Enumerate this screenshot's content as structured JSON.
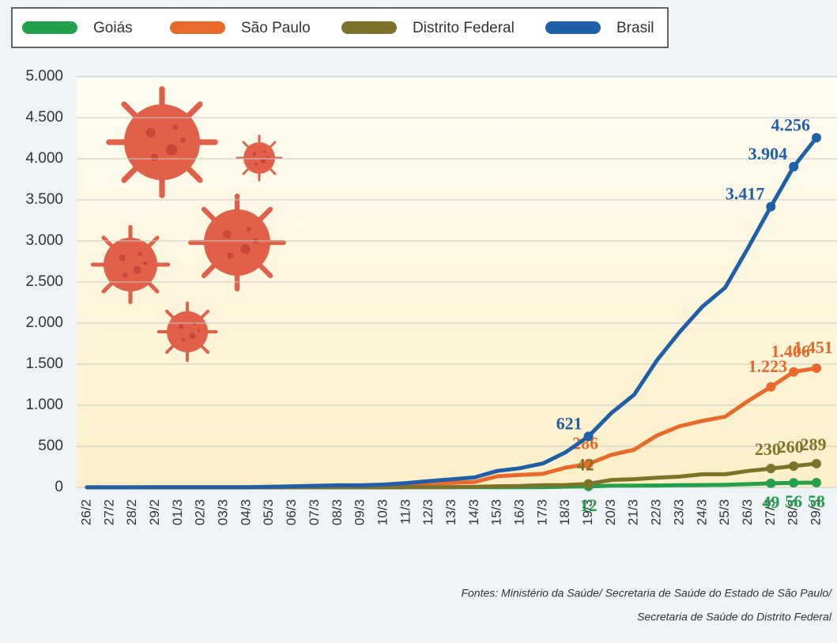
{
  "chart_data": {
    "type": "line",
    "categories": [
      "26/2",
      "27/2",
      "28/2",
      "29/2",
      "01/3",
      "02/3",
      "03/3",
      "04/3",
      "05/3",
      "06/3",
      "07/3",
      "08/3",
      "09/3",
      "10/3",
      "11/3",
      "12/3",
      "13/3",
      "14/3",
      "15/3",
      "16/3",
      "17/3",
      "18/3",
      "19/3",
      "20/3",
      "21/3",
      "22/3",
      "23/3",
      "24/3",
      "25/3",
      "26/3",
      "27/3",
      "28/3",
      "29/3"
    ],
    "series": [
      {
        "name": "Goiás",
        "color": "#22a04a",
        "values": [
          0,
          0,
          0,
          0,
          0,
          0,
          0,
          0,
          0,
          0,
          0,
          0,
          0,
          0,
          1,
          3,
          3,
          3,
          3,
          3,
          3,
          9,
          12,
          20,
          21,
          23,
          27,
          29,
          32,
          39,
          49,
          56,
          58
        ],
        "value_labels": [
          null,
          null,
          null,
          null,
          null,
          null,
          null,
          null,
          null,
          null,
          null,
          null,
          null,
          null,
          null,
          null,
          null,
          null,
          null,
          null,
          null,
          null,
          "12",
          null,
          null,
          null,
          null,
          null,
          null,
          null,
          "49",
          "56",
          "58"
        ]
      },
      {
        "name": "São Paulo",
        "color": "#e8692a",
        "values": [
          1,
          1,
          1,
          2,
          2,
          2,
          2,
          3,
          6,
          10,
          13,
          16,
          16,
          19,
          30,
          46,
          56,
          65,
          136,
          152,
          164,
          240,
          286,
          396,
          459,
          631,
          745,
          810,
          862,
          1052,
          1223,
          1406,
          1451
        ],
        "value_labels": [
          null,
          null,
          null,
          null,
          null,
          null,
          null,
          null,
          null,
          null,
          null,
          null,
          null,
          null,
          null,
          null,
          null,
          null,
          null,
          null,
          null,
          null,
          "286",
          null,
          null,
          null,
          null,
          null,
          null,
          null,
          "1.223",
          "1.406",
          "1.451"
        ]
      },
      {
        "name": "Distrito Federal",
        "color": "#7d7229",
        "values": [
          0,
          0,
          0,
          0,
          0,
          0,
          0,
          0,
          0,
          1,
          1,
          1,
          1,
          1,
          2,
          2,
          3,
          7,
          13,
          17,
          26,
          29,
          42,
          90,
          100,
          117,
          131,
          160,
          160,
          200,
          230,
          260,
          289
        ],
        "value_labels": [
          null,
          null,
          null,
          null,
          null,
          null,
          null,
          null,
          null,
          null,
          null,
          null,
          null,
          null,
          null,
          null,
          null,
          null,
          null,
          null,
          null,
          null,
          "42",
          null,
          null,
          null,
          null,
          null,
          null,
          null,
          "230",
          "260",
          "289"
        ]
      },
      {
        "name": "Brasil",
        "color": "#1f5fa8",
        "values": [
          1,
          1,
          1,
          2,
          2,
          2,
          2,
          3,
          8,
          13,
          19,
          25,
          25,
          34,
          52,
          77,
          98,
          121,
          200,
          234,
          291,
          428,
          621,
          904,
          1128,
          1546,
          1891,
          2201,
          2433,
          2915,
          3417,
          3904,
          4256
        ],
        "value_labels": [
          null,
          null,
          null,
          null,
          null,
          null,
          null,
          null,
          null,
          null,
          null,
          null,
          null,
          null,
          null,
          null,
          null,
          null,
          null,
          null,
          null,
          null,
          "621",
          null,
          null,
          null,
          null,
          null,
          null,
          null,
          "3.417",
          "3.904",
          "4.256"
        ]
      }
    ],
    "ylim": [
      0,
      5000
    ],
    "yticks": [
      0,
      500,
      {
        "value": 1000,
        "label": "1.000"
      },
      {
        "value": 1500,
        "label": "1.500"
      },
      {
        "value": 2000,
        "label": "2.000"
      },
      {
        "value": 2500,
        "label": "2.500"
      },
      {
        "value": 3000,
        "label": "3.000"
      },
      {
        "value": 3500,
        "label": "3.500"
      },
      {
        "value": 4000,
        "label": "4.000"
      },
      {
        "value": 4500,
        "label": "4.500"
      },
      {
        "value": 5000,
        "label": "5.000"
      }
    ],
    "grid": true,
    "legend": "top",
    "source": [
      "Fontes: Ministério da Saúde/ Secretaria de Saúde do Estado de São Paulo/",
      "Secretaria de Saúde do Distrito Federal"
    ]
  }
}
